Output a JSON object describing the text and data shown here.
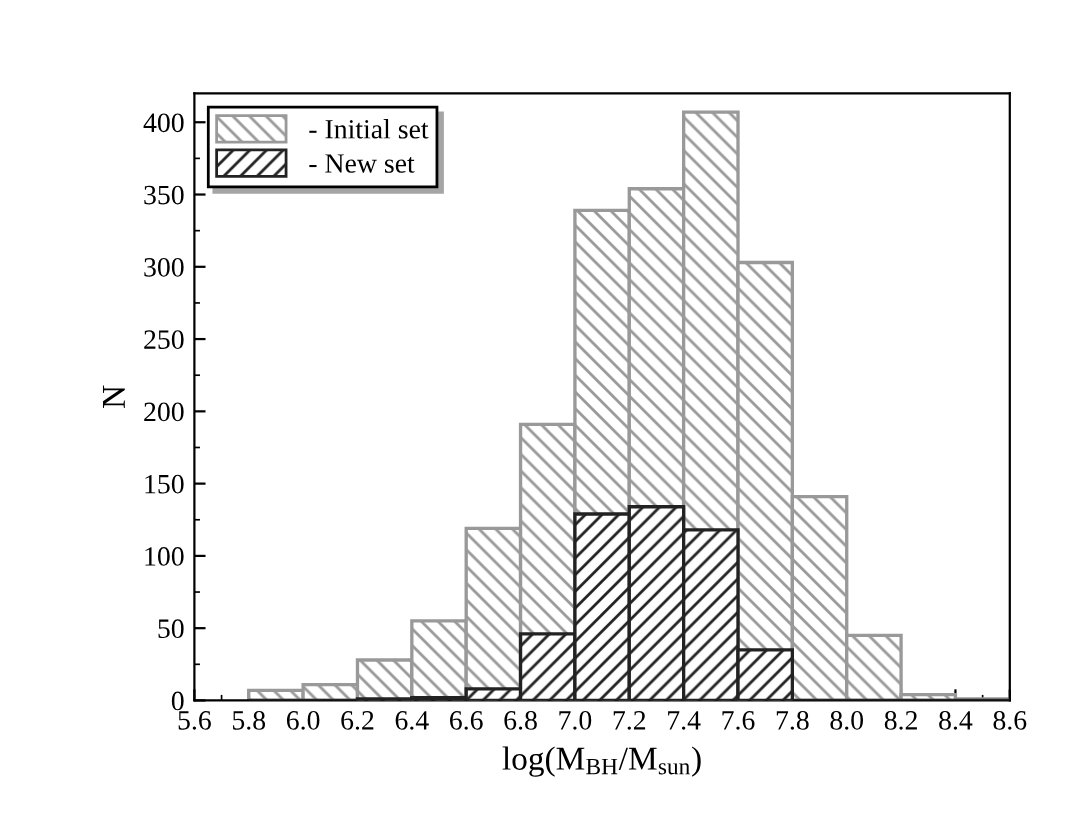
{
  "chart_data": {
    "type": "histogram",
    "xlabel": "log(M$_{BH}$/M$_{sun}$)",
    "ylabel": "N",
    "bins": [
      5.8,
      6.0,
      6.2,
      6.4,
      6.6,
      6.8,
      7.0,
      7.2,
      7.4,
      7.6,
      7.8,
      8.0,
      8.2,
      8.4,
      8.6
    ],
    "series": [
      {
        "name": "- Initial set",
        "color": "#999999",
        "values": [
          7,
          11,
          28,
          55,
          119,
          191,
          339,
          354,
          407,
          303,
          141,
          45,
          4,
          1
        ]
      },
      {
        "name": "- New set",
        "color": "#222222",
        "values": [
          0,
          0,
          1,
          2,
          8,
          46,
          129,
          134,
          118,
          35,
          0,
          0,
          0,
          0
        ]
      }
    ],
    "xlim": [
      5.6,
      8.6
    ],
    "xticks": [
      5.6,
      5.8,
      {
        "value": 6,
        "label": "6.0"
      },
      6.2,
      6.4,
      6.6,
      6.8,
      {
        "value": 7,
        "label": "7.0"
      },
      7.2,
      7.4,
      7.6,
      7.8,
      {
        "value": 8,
        "label": "8.0"
      },
      8.2,
      8.4,
      8.6
    ],
    "ylim": [
      0,
      420
    ],
    "yticks": [
      0,
      50,
      100,
      150,
      200,
      250,
      300,
      350,
      400
    ],
    "grid": false,
    "legend": "top left"
  }
}
